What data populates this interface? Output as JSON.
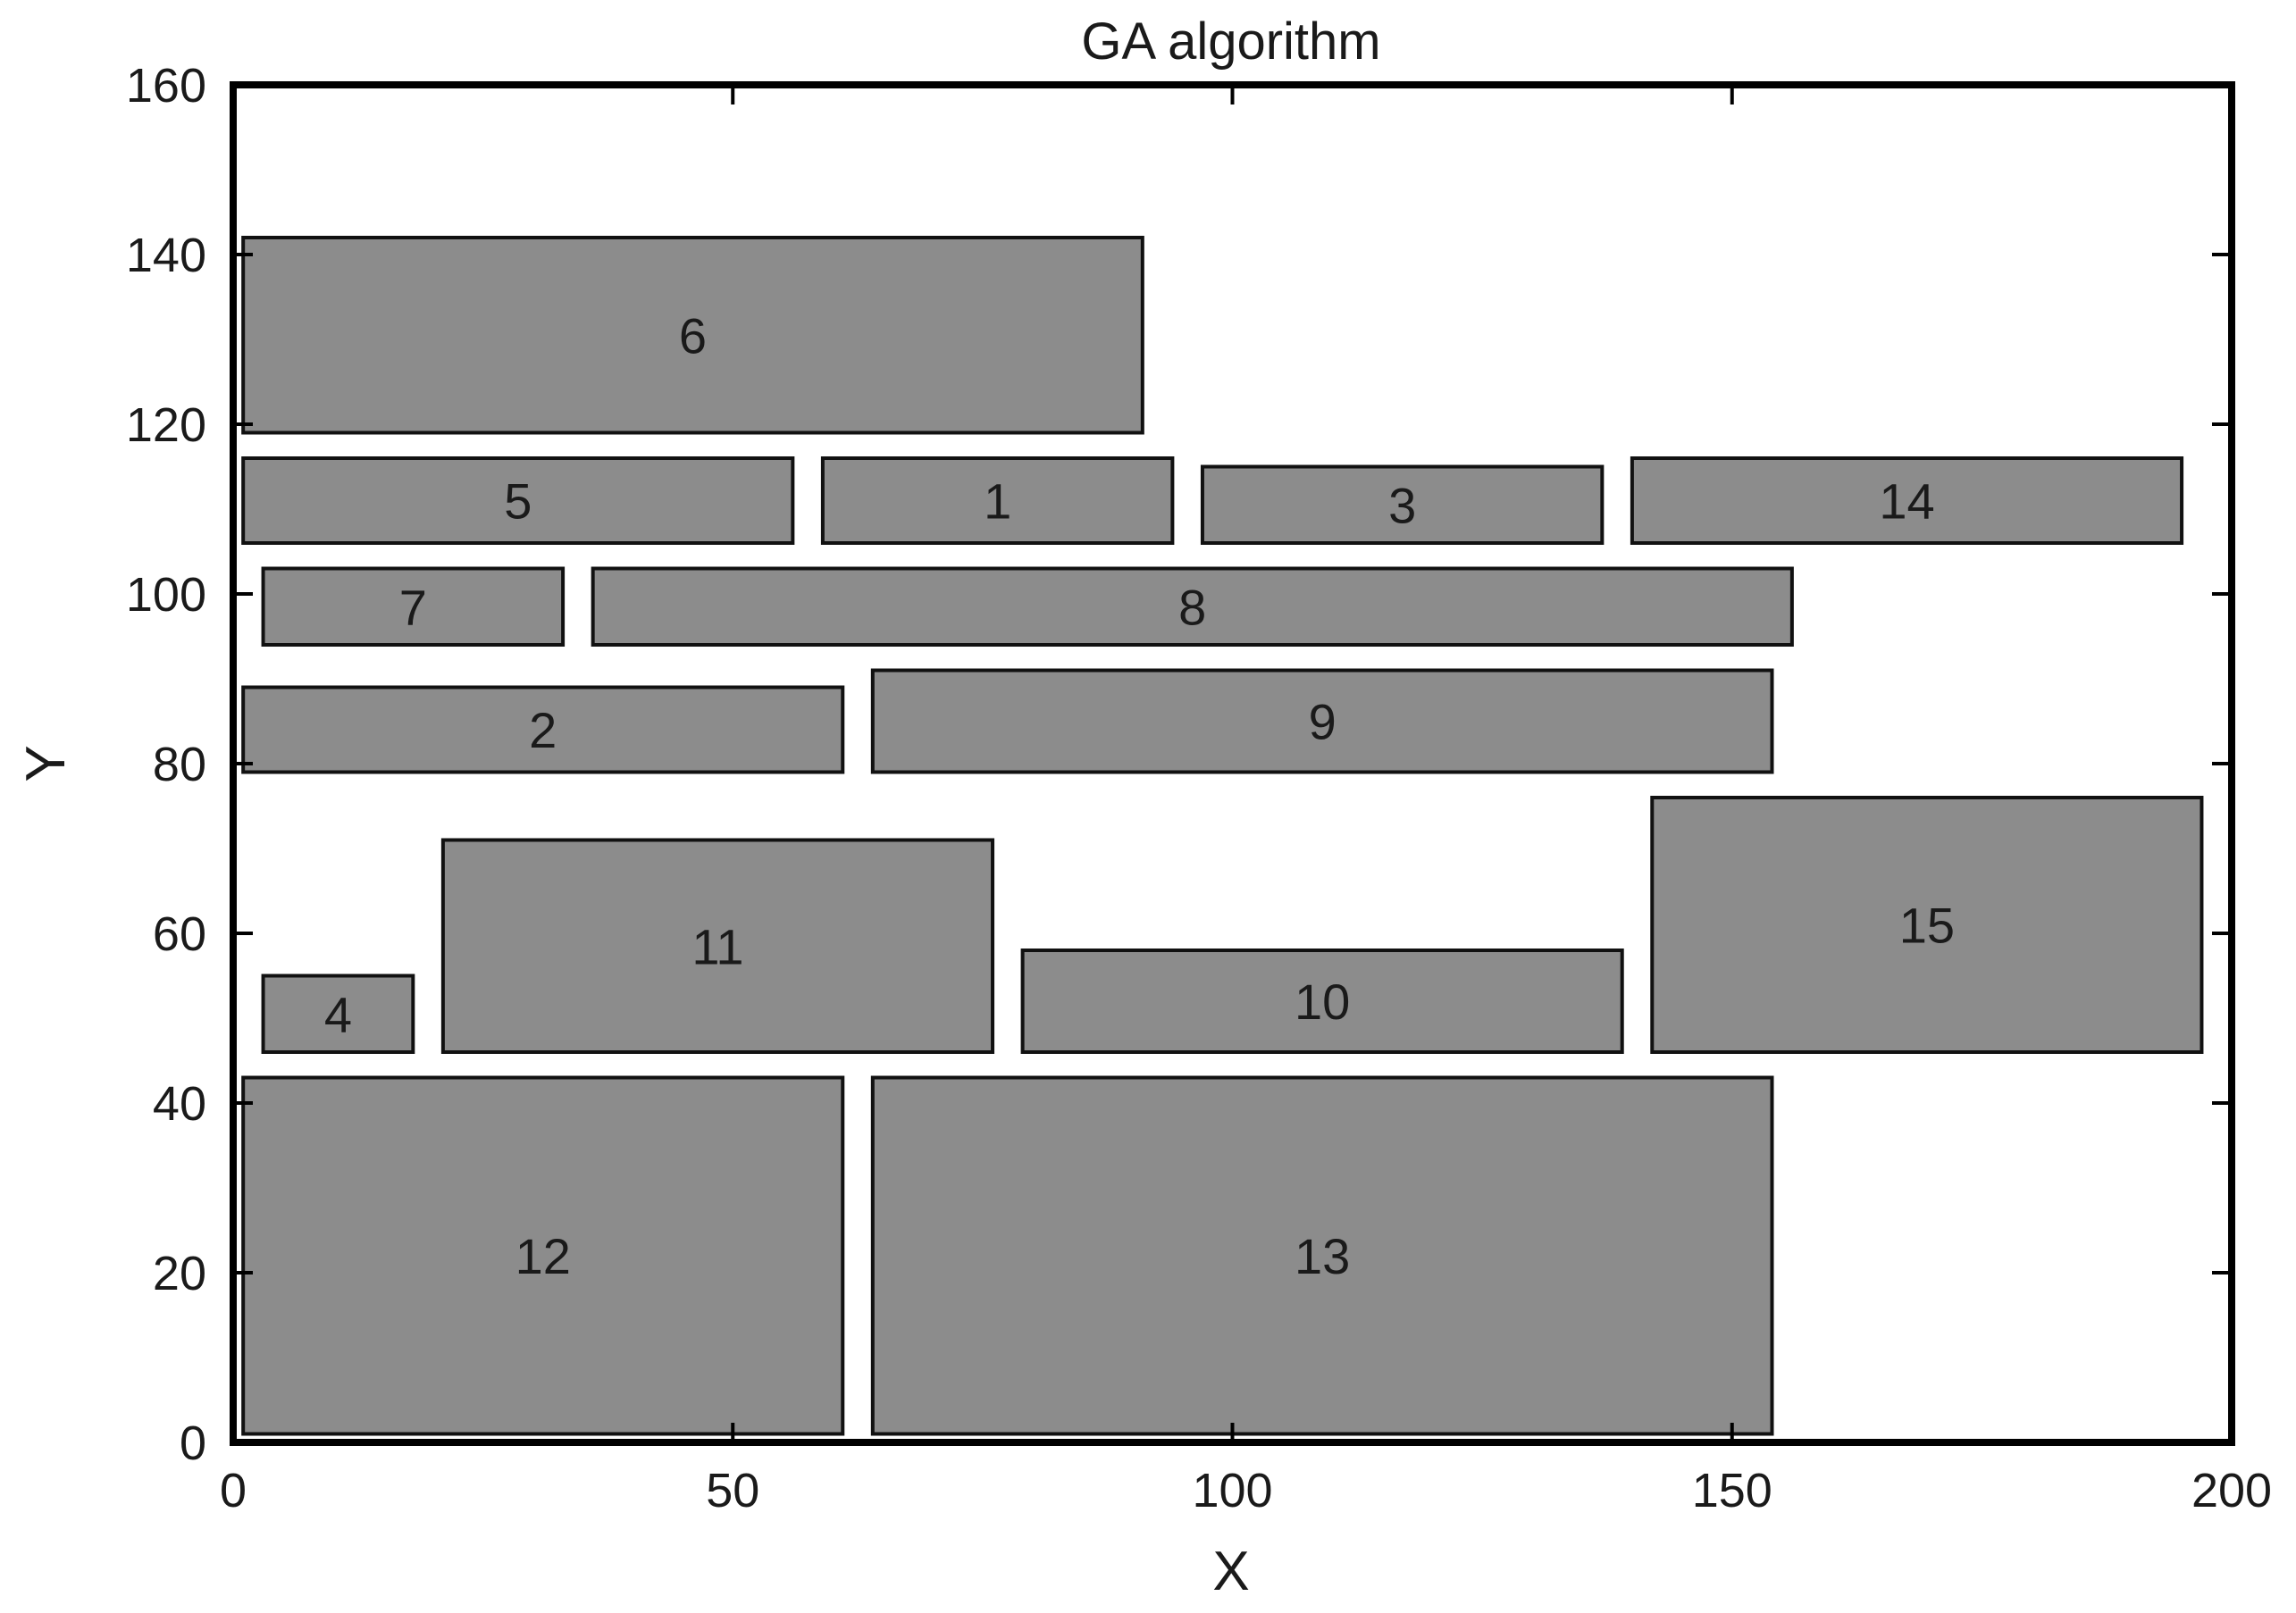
{
  "chart_data": {
    "type": "rectangle-packing",
    "title": "GA algorithm",
    "xlabel": "X",
    "ylabel": "Y",
    "xlim": [
      0,
      200
    ],
    "ylim": [
      0,
      160
    ],
    "xticks": [
      0,
      50,
      100,
      150,
      200
    ],
    "yticks": [
      0,
      20,
      40,
      60,
      80,
      100,
      120,
      140,
      160
    ],
    "grid": false,
    "colors": {
      "fill": "#8c8c8c",
      "stroke": "#111111",
      "frame": "#000000"
    },
    "rectangles": [
      {
        "label": "6",
        "x0": 1,
        "y0": 119,
        "x1": 91,
        "y1": 142
      },
      {
        "label": "5",
        "x0": 1,
        "y0": 106,
        "x1": 56,
        "y1": 116
      },
      {
        "label": "1",
        "x0": 59,
        "y0": 106,
        "x1": 94,
        "y1": 116
      },
      {
        "label": "3",
        "x0": 97,
        "y0": 106,
        "x1": 137,
        "y1": 115
      },
      {
        "label": "14",
        "x0": 140,
        "y0": 106,
        "x1": 195,
        "y1": 116
      },
      {
        "label": "7",
        "x0": 3,
        "y0": 94,
        "x1": 33,
        "y1": 103
      },
      {
        "label": "8",
        "x0": 36,
        "y0": 94,
        "x1": 156,
        "y1": 103
      },
      {
        "label": "2",
        "x0": 1,
        "y0": 79,
        "x1": 61,
        "y1": 89
      },
      {
        "label": "9",
        "x0": 64,
        "y0": 79,
        "x1": 154,
        "y1": 91
      },
      {
        "label": "15",
        "x0": 142,
        "y0": 46,
        "x1": 197,
        "y1": 76
      },
      {
        "label": "11",
        "x0": 21,
        "y0": 46,
        "x1": 76,
        "y1": 71
      },
      {
        "label": "10",
        "x0": 79,
        "y0": 46,
        "x1": 139,
        "y1": 58
      },
      {
        "label": "4",
        "x0": 3,
        "y0": 46,
        "x1": 18,
        "y1": 55
      },
      {
        "label": "12",
        "x0": 1,
        "y0": 1,
        "x1": 61,
        "y1": 43
      },
      {
        "label": "13",
        "x0": 64,
        "y0": 1,
        "x1": 154,
        "y1": 43
      }
    ]
  }
}
